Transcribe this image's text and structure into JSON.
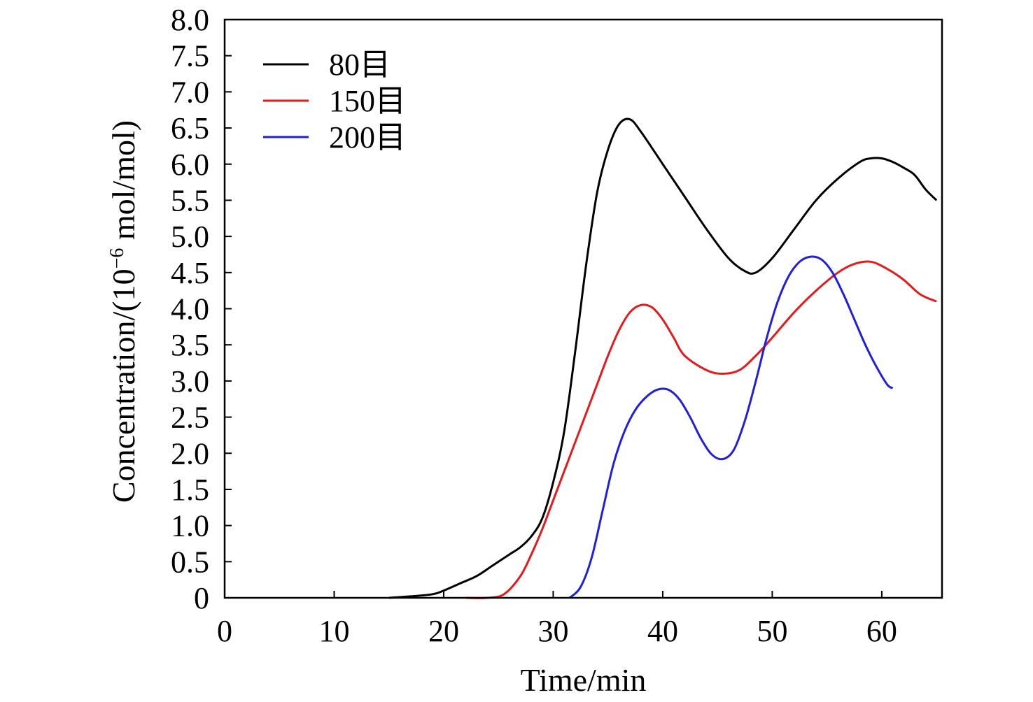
{
  "chart_data": {
    "type": "line",
    "title": "",
    "xlabel": "Time/min",
    "ylabel_prefix": "Concentration/(10",
    "ylabel_exponent": "−6",
    "ylabel_suffix": " mol/mol)",
    "xlim": [
      0,
      65.5
    ],
    "ylim": [
      0,
      8.0
    ],
    "x_ticks": [
      0,
      10,
      20,
      30,
      40,
      50,
      60
    ],
    "x_tick_labels": [
      "0",
      "10",
      "20",
      "30",
      "40",
      "50",
      "60"
    ],
    "y_ticks": [
      0,
      0.5,
      1.0,
      1.5,
      2.0,
      2.5,
      3.0,
      3.5,
      4.0,
      4.5,
      5.0,
      5.5,
      6.0,
      6.5,
      7.0,
      7.5,
      8.0
    ],
    "y_tick_labels": [
      "0",
      "0.5",
      "1.0",
      "1.5",
      "2.0",
      "2.5",
      "3.0",
      "3.5",
      "4.0",
      "4.5",
      "5.0",
      "5.5",
      "6.0",
      "6.5",
      "7.0",
      "7.5",
      "8.0"
    ],
    "grid": false,
    "legend_position": "top-left",
    "series": [
      {
        "name": "80目",
        "color": "#000000",
        "points": [
          [
            15,
            0
          ],
          [
            17,
            0.02
          ],
          [
            19,
            0.05
          ],
          [
            20,
            0.1
          ],
          [
            21.5,
            0.2
          ],
          [
            23,
            0.3
          ],
          [
            24.5,
            0.45
          ],
          [
            26,
            0.6
          ],
          [
            27,
            0.7
          ],
          [
            28,
            0.85
          ],
          [
            29,
            1.1
          ],
          [
            30,
            1.6
          ],
          [
            31,
            2.3
          ],
          [
            32,
            3.4
          ],
          [
            33,
            4.6
          ],
          [
            34,
            5.6
          ],
          [
            35,
            6.2
          ],
          [
            36,
            6.55
          ],
          [
            37,
            6.62
          ],
          [
            38,
            6.45
          ],
          [
            40,
            6.0
          ],
          [
            42,
            5.55
          ],
          [
            44,
            5.1
          ],
          [
            46,
            4.7
          ],
          [
            47.5,
            4.52
          ],
          [
            48.5,
            4.5
          ],
          [
            50,
            4.7
          ],
          [
            52,
            5.1
          ],
          [
            54,
            5.5
          ],
          [
            56,
            5.8
          ],
          [
            58,
            6.03
          ],
          [
            59,
            6.08
          ],
          [
            60,
            6.08
          ],
          [
            61,
            6.03
          ],
          [
            62,
            5.95
          ],
          [
            63,
            5.85
          ],
          [
            64,
            5.65
          ],
          [
            65,
            5.5
          ]
        ]
      },
      {
        "name": "150目",
        "color": "#e41a1c",
        "points": [
          [
            22,
            0
          ],
          [
            24,
            0
          ],
          [
            25.5,
            0.05
          ],
          [
            27,
            0.3
          ],
          [
            28,
            0.6
          ],
          [
            29,
            0.95
          ],
          [
            30,
            1.35
          ],
          [
            31,
            1.75
          ],
          [
            32,
            2.15
          ],
          [
            33,
            2.55
          ],
          [
            34,
            2.95
          ],
          [
            35,
            3.35
          ],
          [
            36,
            3.7
          ],
          [
            37,
            3.95
          ],
          [
            38,
            4.05
          ],
          [
            39,
            4.02
          ],
          [
            40,
            3.85
          ],
          [
            41,
            3.6
          ],
          [
            42,
            3.35
          ],
          [
            44,
            3.15
          ],
          [
            45.5,
            3.1
          ],
          [
            47,
            3.15
          ],
          [
            48.5,
            3.35
          ],
          [
            50,
            3.6
          ],
          [
            52,
            3.95
          ],
          [
            54,
            4.25
          ],
          [
            56,
            4.5
          ],
          [
            57.5,
            4.62
          ],
          [
            59,
            4.65
          ],
          [
            60.5,
            4.55
          ],
          [
            62,
            4.4
          ],
          [
            63.5,
            4.2
          ],
          [
            65,
            4.1
          ]
        ]
      },
      {
        "name": "200目",
        "color": "#1f1fe0",
        "points": [
          [
            31.5,
            0
          ],
          [
            32.5,
            0.15
          ],
          [
            33.5,
            0.55
          ],
          [
            34.5,
            1.2
          ],
          [
            35.5,
            1.85
          ],
          [
            36.5,
            2.3
          ],
          [
            37.5,
            2.6
          ],
          [
            38.5,
            2.78
          ],
          [
            39.5,
            2.88
          ],
          [
            40.5,
            2.88
          ],
          [
            41.5,
            2.75
          ],
          [
            42.5,
            2.5
          ],
          [
            43.5,
            2.2
          ],
          [
            44.5,
            1.98
          ],
          [
            45.5,
            1.92
          ],
          [
            46.5,
            2.05
          ],
          [
            47.5,
            2.45
          ],
          [
            48.5,
            3.0
          ],
          [
            49.5,
            3.6
          ],
          [
            50.5,
            4.1
          ],
          [
            51.5,
            4.45
          ],
          [
            52.5,
            4.65
          ],
          [
            53.5,
            4.72
          ],
          [
            54.5,
            4.68
          ],
          [
            55.5,
            4.5
          ],
          [
            56.5,
            4.2
          ],
          [
            57.5,
            3.85
          ],
          [
            58.5,
            3.5
          ],
          [
            59.5,
            3.2
          ],
          [
            60.5,
            2.95
          ],
          [
            61,
            2.9
          ]
        ]
      }
    ]
  }
}
